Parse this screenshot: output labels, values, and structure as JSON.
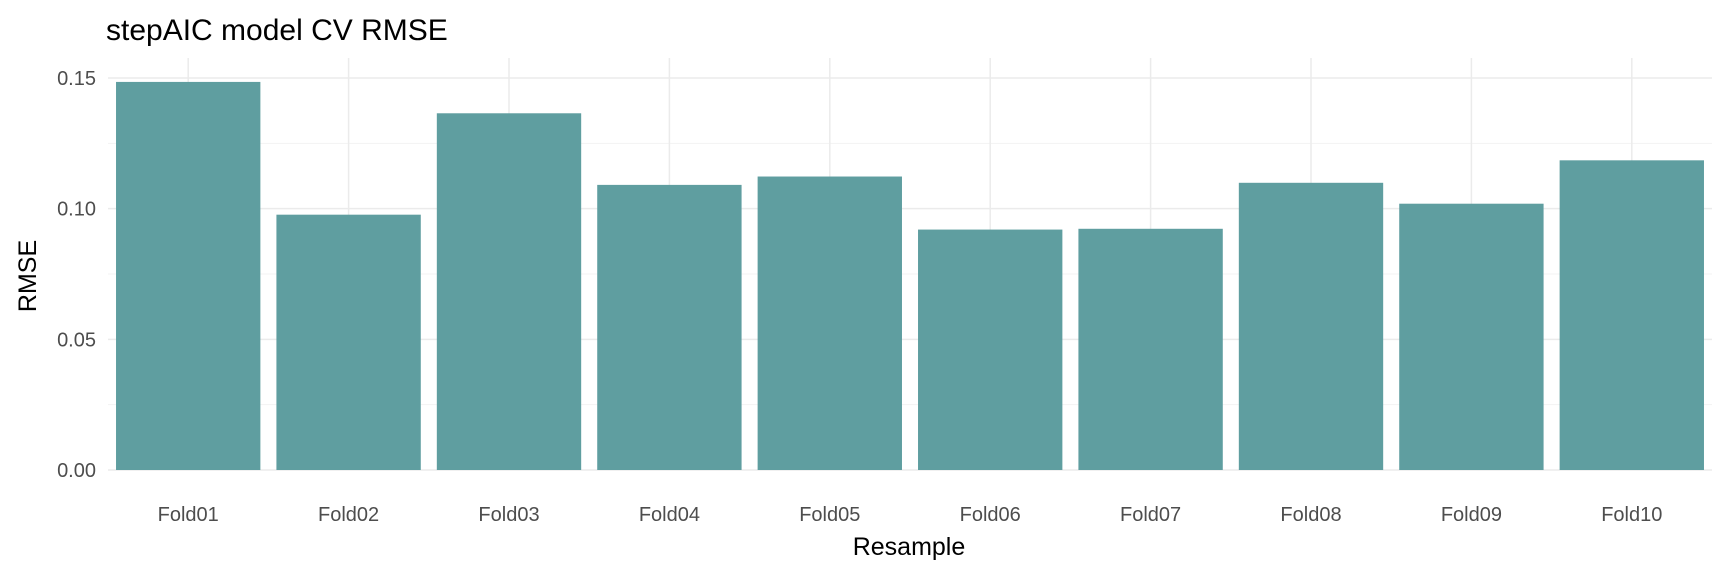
{
  "chart_data": {
    "type": "bar",
    "title": "stepAIC model CV RMSE",
    "xlabel": "Resample",
    "ylabel": "RMSE",
    "categories": [
      "Fold01",
      "Fold02",
      "Fold03",
      "Fold04",
      "Fold05",
      "Fold06",
      "Fold07",
      "Fold08",
      "Fold09",
      "Fold10"
    ],
    "values": [
      0.1485,
      0.0977,
      0.1365,
      0.1091,
      0.1123,
      0.092,
      0.0923,
      0.1099,
      0.1019,
      0.1185
    ],
    "ylim": [
      0,
      0.15
    ],
    "yticks": [
      "0.00",
      "0.05",
      "0.10",
      "0.15"
    ],
    "bar_color": "#5f9ea0",
    "grid": true,
    "legend": "none"
  }
}
